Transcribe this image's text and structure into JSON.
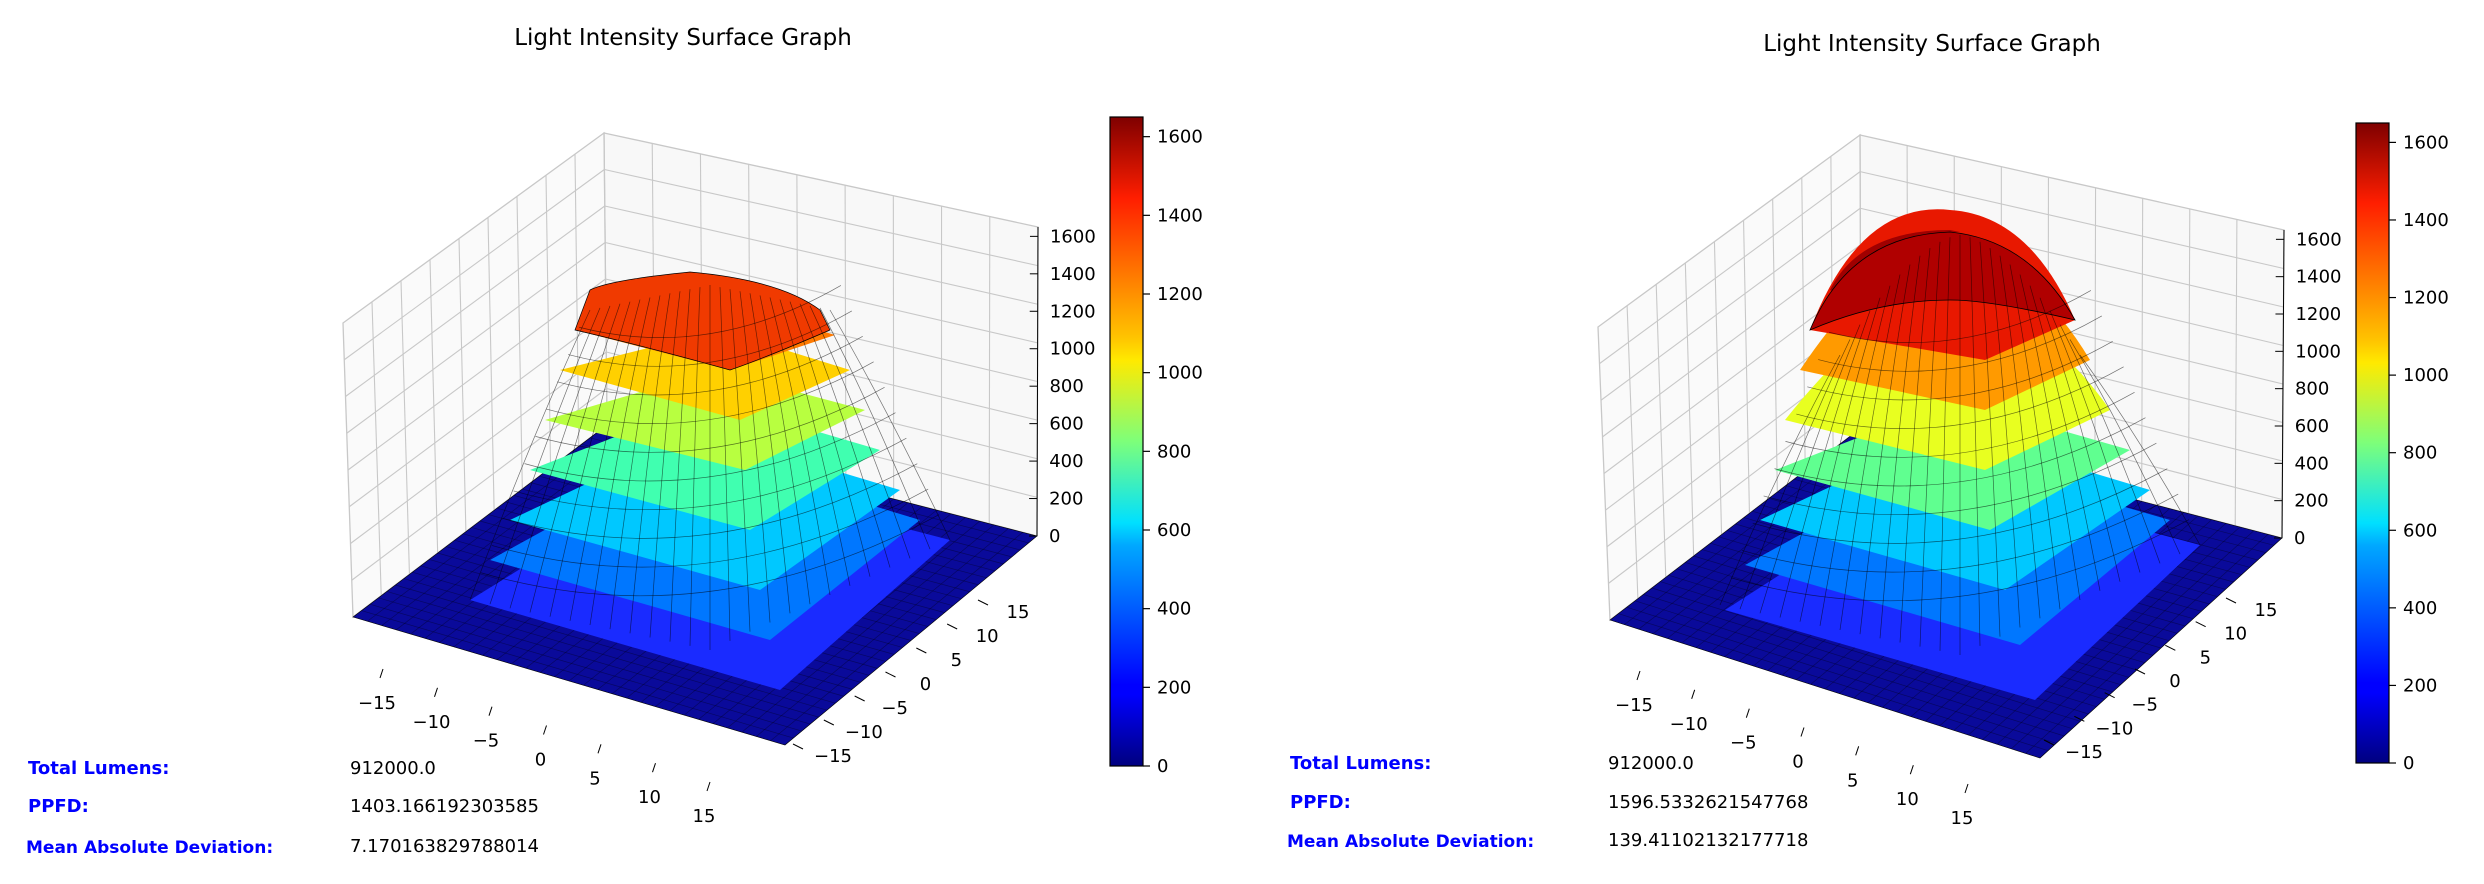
{
  "chart_data": [
    {
      "type": "surface3d",
      "title": "Light Intensity Surface Graph",
      "x_ticks": [
        "−15",
        "−10",
        "−5",
        "0",
        "5",
        "10",
        "15"
      ],
      "y_ticks": [
        "15",
        "10",
        "5",
        "0",
        "−5",
        "−10",
        "−15"
      ],
      "z_ticks": [
        "0",
        "200",
        "400",
        "600",
        "800",
        "1000",
        "1200",
        "1400",
        "1600"
      ],
      "colorbar_ticks": [
        "0",
        "200",
        "400",
        "600",
        "800",
        "1000",
        "1200",
        "1400",
        "1600"
      ],
      "colorbar_range": [
        0,
        1650
      ],
      "colormap": "jet",
      "surface_profile": "flat-top plateau",
      "peak_value": 1403.2,
      "stats": [
        {
          "label": "Total Lumens:",
          "value": "912000.0"
        },
        {
          "label": "PPFD:",
          "value": "1403.166192303585"
        },
        {
          "label": "Mean Absolute Deviation:",
          "value": "7.170163829788014"
        }
      ]
    },
    {
      "type": "surface3d",
      "title": "Light Intensity Surface Graph",
      "x_ticks": [
        "−15",
        "−10",
        "−5",
        "0",
        "5",
        "10",
        "15"
      ],
      "y_ticks": [
        "15",
        "10",
        "5",
        "0",
        "−5",
        "−10",
        "−15"
      ],
      "z_ticks": [
        "0",
        "200",
        "400",
        "600",
        "800",
        "1000",
        "1200",
        "1400",
        "1600"
      ],
      "colorbar_ticks": [
        "0",
        "200",
        "400",
        "600",
        "800",
        "1000",
        "1200",
        "1400",
        "1600"
      ],
      "colorbar_range": [
        0,
        1650
      ],
      "colormap": "jet",
      "surface_profile": "central dome",
      "peak_value": 1650,
      "stats": [
        {
          "label": "Total Lumens:",
          "value": "912000.0"
        },
        {
          "label": "PPFD:",
          "value": "1596.5332621547768"
        },
        {
          "label": "Mean Absolute Deviation:",
          "value": "139.41102132177718"
        }
      ]
    }
  ]
}
